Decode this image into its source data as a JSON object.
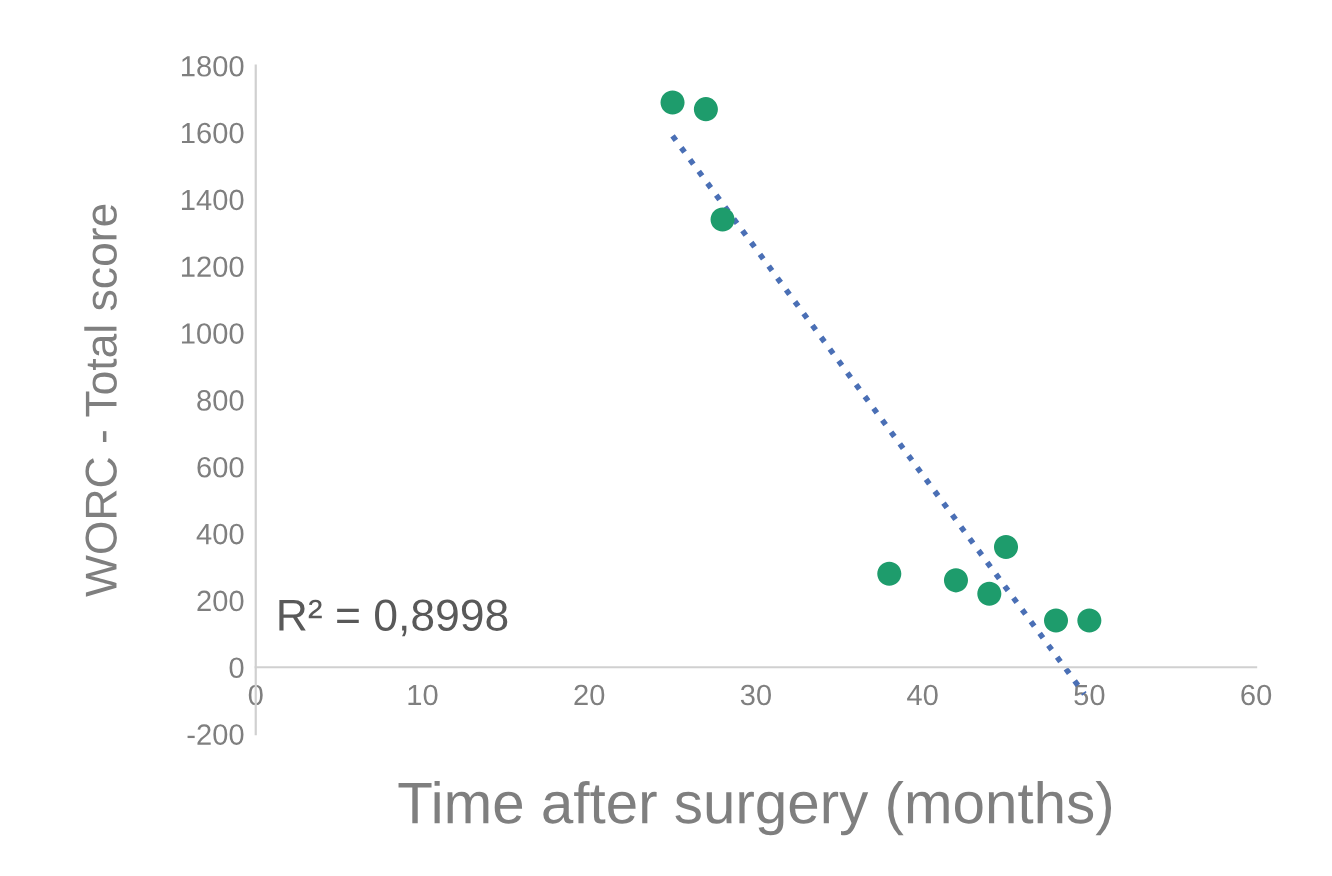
{
  "chart_data": {
    "type": "scatter",
    "xlabel": "Time after surgery (months)",
    "ylabel": "WORC - Total score",
    "series": [
      {
        "color": "#1e9c6c",
        "marker": "circle",
        "x": [
          25,
          27,
          28,
          38,
          42,
          44,
          45,
          48,
          50
        ],
        "values": [
          1690,
          1670,
          1340,
          280,
          260,
          220,
          360,
          140,
          140
        ]
      },
      {
        "type": "line",
        "color": "#4a6fb5",
        "line_style": "dotted",
        "marker": "none",
        "x": [
          25,
          49.7
        ],
        "values": [
          1590,
          -80
        ]
      }
    ],
    "annotations": [
      "R² = 0,8998"
    ],
    "xlim": [
      0,
      60
    ],
    "xticks": [
      0,
      10,
      20,
      30,
      40,
      50,
      60
    ],
    "ylim": [
      -200,
      1800
    ],
    "yticks": [
      -200,
      0,
      200,
      400,
      600,
      800,
      1000,
      1200,
      1400,
      1600,
      1800
    ],
    "grid": false,
    "legend": false
  }
}
